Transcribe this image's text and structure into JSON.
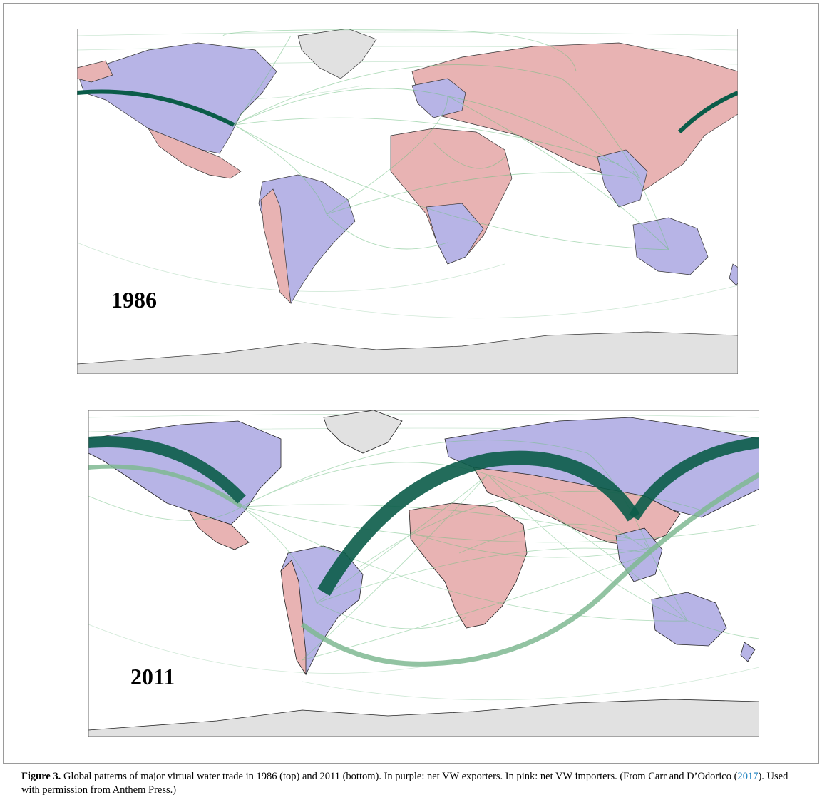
{
  "panels": [
    {
      "id": "1986",
      "year_label": "1986"
    },
    {
      "id": "2011",
      "year_label": "2011"
    }
  ],
  "colors": {
    "exporter": "#b7b4e6",
    "importer": "#e8b3b3",
    "unknown_land": "#e1e1e1",
    "flow_thin": "#6fbf82",
    "flow_major": "#0b5c49",
    "flow_light": "#7fb892"
  },
  "caption": {
    "figure_label": "Figure 3.",
    "text_before_link": " Global patterns of major virtual water trade in 1986 (top) and 2011 (bottom). In purple: net VW exporters. In pink: net VW importers. (From Carr and D’Odorico (",
    "link_text": "2017",
    "text_after_link": "). Used with permission from Anthem Press.)"
  }
}
